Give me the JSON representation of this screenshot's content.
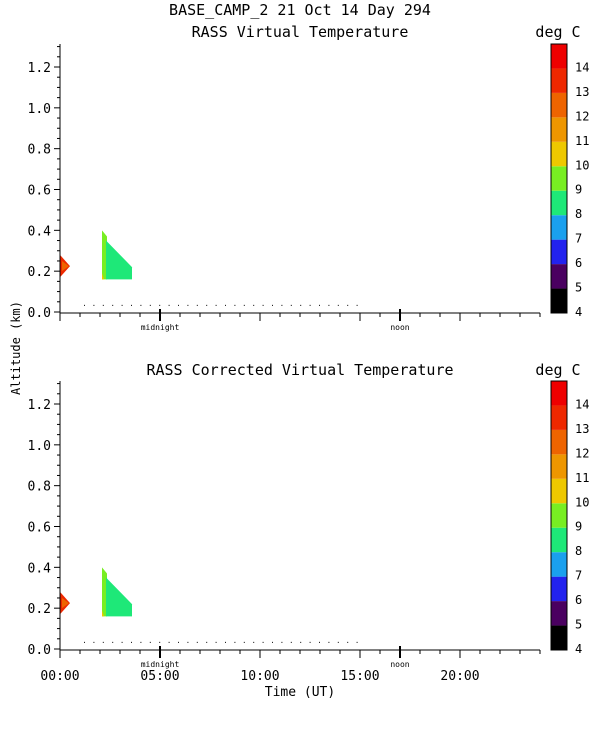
{
  "header": {
    "title": "BASE_CAMP_2  21 Oct 14 Day 294"
  },
  "shared_axes": {
    "ylabel": "Altitude (km)",
    "xlabel": "Time (UT)",
    "yticks": [
      "0.0",
      "0.2",
      "0.4",
      "0.6",
      "0.8",
      "1.0",
      "1.2"
    ],
    "xticks": [
      "00:00",
      "05:00",
      "10:00",
      "15:00",
      "20:00"
    ],
    "midnight_label": "midnight",
    "noon_label": "noon"
  },
  "colorbar": {
    "unit": "deg C",
    "levels": [
      "4",
      "5",
      "6",
      "7",
      "8",
      "9",
      "10",
      "11",
      "12",
      "13",
      "14"
    ],
    "colors": [
      "#000000",
      "#4a0060",
      "#2222ee",
      "#1aa0ee",
      "#1ee878",
      "#78ee22",
      "#eec800",
      "#ee9600",
      "#ee6400",
      "#ee2800",
      "#ee0000"
    ]
  },
  "chart_data": [
    {
      "type": "heatmap",
      "title": "RASS Virtual Temperature",
      "xlabel": "",
      "ylabel": "Altitude (km)",
      "xlim": [
        0,
        24
      ],
      "ylim": [
        0,
        1.3
      ],
      "regions": [
        {
          "color": "#ee2800",
          "value": 13,
          "points": [
            [
              0,
              0.17
            ],
            [
              0,
              0.28
            ],
            [
              0.5,
              0.225
            ]
          ]
        },
        {
          "color": "#ee6400",
          "value": 12,
          "points": [
            [
              0.1,
              0.2
            ],
            [
              0.1,
              0.25
            ],
            [
              0.45,
              0.225
            ]
          ]
        },
        {
          "color": "#78ee22",
          "value": 9,
          "points": [
            [
              2.1,
              0.4
            ],
            [
              2.1,
              0.16
            ],
            [
              2.35,
              0.16
            ],
            [
              2.35,
              0.37
            ]
          ]
        },
        {
          "color": "#1ee878",
          "value": 8,
          "points": [
            [
              2.3,
              0.35
            ],
            [
              3.6,
              0.22
            ],
            [
              3.6,
              0.16
            ],
            [
              2.3,
              0.16
            ]
          ]
        },
        {
          "color": "#eec800",
          "value": 10,
          "points": [
            [
              2.1,
              0.16
            ],
            [
              2.1,
              0.19
            ],
            [
              2.2,
              0.16
            ]
          ]
        }
      ],
      "dots_y": 0.035,
      "dots_xlim": [
        1.2,
        15.0
      ]
    },
    {
      "type": "heatmap",
      "title": "RASS Corrected Virtual Temperature",
      "xlabel": "Time (UT)",
      "ylabel": "Altitude (km)",
      "xlim": [
        0,
        24
      ],
      "ylim": [
        0,
        1.3
      ],
      "regions": [
        {
          "color": "#ee2800",
          "value": 13,
          "points": [
            [
              0,
              0.17
            ],
            [
              0,
              0.28
            ],
            [
              0.5,
              0.225
            ]
          ]
        },
        {
          "color": "#ee6400",
          "value": 12,
          "points": [
            [
              0.1,
              0.2
            ],
            [
              0.1,
              0.25
            ],
            [
              0.45,
              0.225
            ]
          ]
        },
        {
          "color": "#78ee22",
          "value": 9,
          "points": [
            [
              2.1,
              0.4
            ],
            [
              2.1,
              0.16
            ],
            [
              2.35,
              0.16
            ],
            [
              2.35,
              0.37
            ]
          ]
        },
        {
          "color": "#1ee878",
          "value": 8,
          "points": [
            [
              2.3,
              0.35
            ],
            [
              3.6,
              0.22
            ],
            [
              3.6,
              0.16
            ],
            [
              2.3,
              0.16
            ]
          ]
        },
        {
          "color": "#eec800",
          "value": 10,
          "points": [
            [
              2.1,
              0.16
            ],
            [
              2.1,
              0.19
            ],
            [
              2.2,
              0.16
            ]
          ]
        }
      ],
      "dots_y": 0.035,
      "dots_xlim": [
        1.2,
        15.0
      ]
    }
  ]
}
